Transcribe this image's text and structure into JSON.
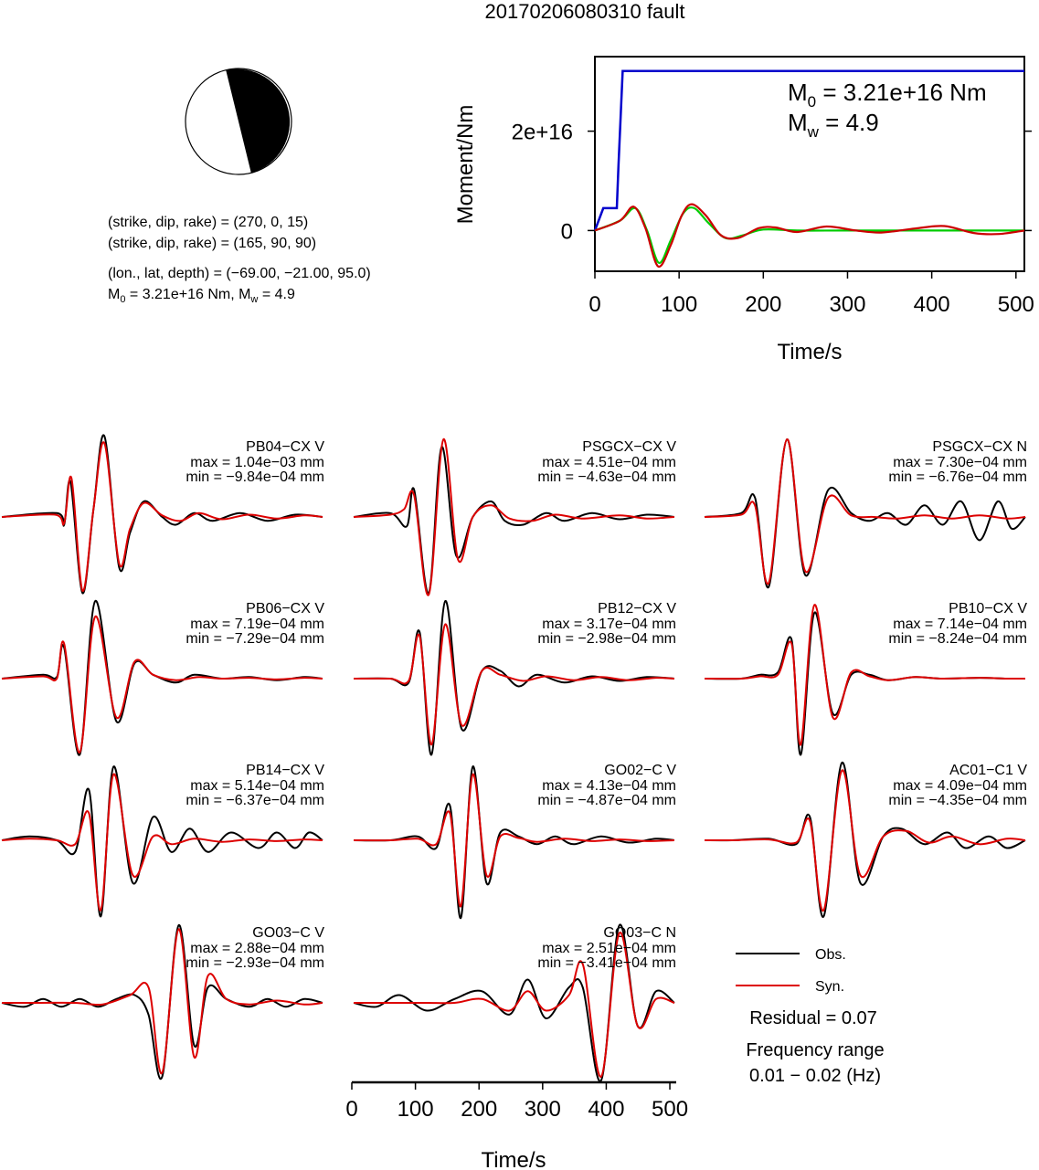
{
  "page": {
    "title": "20170206080310 fault"
  },
  "beachball": {
    "colors": {
      "fill": "#000000",
      "background": "#ffffff"
    }
  },
  "info": {
    "line1": "(strike, dip, rake) = (270, 0, 15)",
    "line2": "(strike, dip, rake) = (165, 90, 90)",
    "line3": "(lon., lat, depth) = (−69.00, −21.00, 95.0)",
    "line4_prefix": "M",
    "line4_sub0": "0",
    "line4_mid": " = 3.21e+16 Nm, M",
    "line4_sub1": "w",
    "line4_suffix": " = 4.9"
  },
  "chart_data": [
    {
      "id": "moment",
      "type": "line",
      "title": "",
      "xlabel": "Time/s",
      "ylabel": "Moment/Nm",
      "xlim": [
        0,
        510
      ],
      "ylim": [
        -8200000000000000.0,
        3.5e+16
      ],
      "xticks": [
        0,
        100,
        200,
        300,
        400,
        500
      ],
      "yticks": [
        {
          "value": 0,
          "label": "0"
        },
        {
          "value": 2e+16,
          "label": "2e+16"
        }
      ],
      "annotation": {
        "m0": "M",
        "m0_sub": "0",
        "m0_val": " = 3.21e+16 Nm",
        "mw": "M",
        "mw_sub": "w",
        "mw_val": " = 4.9"
      },
      "series": [
        {
          "color": "#0000cc",
          "x": [
            0,
            10,
            12,
            26,
            28,
            33,
            510
          ],
          "y": [
            0,
            4500000000000000.0,
            4500000000000000.0,
            4500000000000000.0,
            1.3e+16,
            3.21e+16,
            3.21e+16
          ]
        },
        {
          "color": "#00cc00",
          "x": [
            0,
            30,
            48,
            62,
            76,
            90,
            105,
            118,
            135,
            155,
            175,
            200,
            240,
            300,
            400,
            510
          ],
          "y": [
            0,
            2000000000000000.0,
            4500000000000000.0,
            0,
            -6500000000000000.0,
            -2000000000000000.0,
            3500000000000000.0,
            4500000000000000.0,
            1500000000000000.0,
            -1500000000000000.0,
            -1000000000000000.0,
            200000000000000.0,
            0,
            0,
            0,
            0
          ]
        },
        {
          "color": "#cc0000",
          "x": [
            0,
            30,
            46,
            60,
            75,
            90,
            103,
            115,
            132,
            150,
            170,
            195,
            215,
            240,
            275,
            310,
            340,
            380,
            415,
            450,
            480,
            510
          ],
          "y": [
            0,
            2000000000000000.0,
            4800000000000000.0,
            500000000000000.0,
            -7200000000000000.0,
            -3000000000000000.0,
            3000000000000000.0,
            5300000000000000.0,
            3000000000000000.0,
            -1000000000000000.0,
            -1500000000000000.0,
            500000000000000.0,
            600000000000000.0,
            -300000000000000.0,
            800000000000000.0,
            0,
            -400000000000000.0,
            400000000000000.0,
            900000000000000.0,
            -500000000000000.0,
            -700000000000000.0,
            0
          ]
        }
      ]
    },
    {
      "id": "waveforms",
      "type": "line",
      "legend": {
        "obs": "Obs.",
        "syn": "Syn.",
        "obs_color": "#000000",
        "syn_color": "#dd0000"
      },
      "residual": "Residual = 0.07",
      "freq_label": "Frequency range",
      "freq_value": "0.01 − 0.02 (Hz)",
      "xlabel": "Time/s",
      "xlim": [
        0,
        510
      ],
      "xticks": [
        0,
        100,
        200,
        300,
        400,
        500
      ],
      "stations": [
        {
          "name": "PB04−CX V",
          "max": "max = 1.04e−03 mm",
          "min": "min = −9.84e−04 mm",
          "ymax": 0.00104,
          "ymin": -0.000984,
          "obs_t": [
            0,
            60,
            68,
            75,
            88,
            100,
            112,
            128,
            140,
            155,
            175,
            190,
            210,
            230,
            260,
            290,
            320,
            350
          ],
          "obs_v": [
            0,
            0.05,
            -0.1,
            0.45,
            -0.98,
            0.1,
            1.04,
            -0.65,
            -0.2,
            0.2,
            0,
            -0.1,
            0.05,
            -0.05,
            0.05,
            -0.05,
            0.03,
            0
          ],
          "syn_t": [
            0,
            58,
            68,
            76,
            88,
            100,
            112,
            128,
            140,
            155,
            175,
            195,
            215,
            240,
            270,
            300,
            330,
            350
          ],
          "syn_v": [
            0,
            0.03,
            -0.08,
            0.5,
            -0.95,
            0.1,
            0.95,
            -0.6,
            -0.15,
            0.18,
            0.02,
            -0.05,
            0.05,
            -0.03,
            0.03,
            -0.02,
            0.02,
            0
          ]
        },
        {
          "name": "PSGCX−CX V",
          "max": "max = 4.51e−04 mm",
          "min": "min = −4.63e−04 mm",
          "ymax": 0.000451,
          "ymin": -0.000463,
          "obs_t": [
            0,
            40,
            58,
            66,
            82,
            96,
            112,
            130,
            150,
            165,
            185,
            210,
            230,
            260,
            290,
            320,
            350
          ],
          "obs_v": [
            0,
            0.05,
            -0.12,
            0.35,
            -0.98,
            0.9,
            -0.5,
            0.0,
            0.2,
            -0.05,
            -0.1,
            0.05,
            -0.05,
            0.05,
            -0.03,
            0.03,
            0
          ],
          "syn_t": [
            0,
            40,
            55,
            66,
            82,
            98,
            114,
            130,
            150,
            170,
            195,
            220,
            250,
            290,
            320,
            350
          ],
          "syn_v": [
            0,
            0.03,
            0.1,
            0.28,
            -1.0,
            1.0,
            -0.55,
            0,
            0.15,
            -0.02,
            -0.05,
            0.03,
            -0.02,
            0.02,
            -0.02,
            0
          ]
        },
        {
          "name": "PSGCX−CX N",
          "max": "max = 7.30e−04 mm",
          "min": "min = −6.76e−04 mm",
          "ymax": 0.00073,
          "ymin": -0.000676,
          "obs_t": [
            0,
            40,
            55,
            70,
            90,
            110,
            135,
            160,
            180,
            200,
            220,
            240,
            260,
            280,
            300,
            320,
            335,
            350
          ],
          "obs_v": [
            0,
            0.05,
            0.25,
            -0.9,
            1.0,
            -0.75,
            0.35,
            0.05,
            -0.05,
            0.05,
            -0.1,
            0.15,
            -0.1,
            0.2,
            -0.3,
            0.2,
            -0.15,
            0
          ],
          "syn_t": [
            0,
            40,
            55,
            70,
            90,
            110,
            135,
            160,
            185,
            210,
            240,
            270,
            300,
            330,
            350
          ],
          "syn_v": [
            0,
            0.03,
            0.15,
            -0.85,
            1.0,
            -0.7,
            0.25,
            0.02,
            0,
            -0.02,
            0.02,
            -0.02,
            0.02,
            -0.02,
            0
          ]
        },
        {
          "name": "PB06−CX V",
          "max": "max = 7.19e−04 mm",
          "min": "min = −7.29e−04 mm",
          "ymax": 0.000719,
          "ymin": -0.000729,
          "obs_t": [
            0,
            45,
            60,
            68,
            85,
            102,
            125,
            145,
            165,
            190,
            210,
            240,
            270,
            300,
            330,
            350
          ],
          "obs_v": [
            0,
            0.05,
            0.02,
            0.4,
            -0.98,
            1.0,
            -0.55,
            0.2,
            0.05,
            -0.05,
            0.05,
            0,
            0.02,
            -0.02,
            0.02,
            0
          ],
          "syn_t": [
            0,
            45,
            60,
            68,
            85,
            102,
            125,
            145,
            165,
            190,
            215,
            240,
            270,
            300,
            330,
            350
          ],
          "syn_v": [
            0,
            0.03,
            0,
            0.45,
            -0.95,
            0.8,
            -0.5,
            0.22,
            0.05,
            -0.02,
            0.02,
            0,
            0.01,
            -0.01,
            0.01,
            0
          ]
        },
        {
          "name": "PB12−CX V",
          "max": "max = 3.17e−04 mm",
          "min": "min = −2.98e−04 mm",
          "ymax": 0.000317,
          "ymin": -0.000298,
          "obs_t": [
            0,
            40,
            60,
            72,
            85,
            100,
            118,
            140,
            160,
            180,
            200,
            230,
            260,
            290,
            320,
            350
          ],
          "obs_v": [
            0,
            0.0,
            -0.05,
            0.6,
            -0.98,
            1.0,
            -0.65,
            0.1,
            0.1,
            -0.1,
            0.05,
            -0.05,
            0.03,
            -0.03,
            0.02,
            0
          ],
          "syn_t": [
            0,
            40,
            60,
            72,
            85,
            100,
            118,
            140,
            160,
            185,
            210,
            240,
            270,
            300,
            330,
            350
          ],
          "syn_v": [
            0,
            0,
            -0.03,
            0.55,
            -0.85,
            0.7,
            -0.6,
            0.1,
            0.05,
            -0.03,
            0.03,
            -0.02,
            0.02,
            -0.02,
            0.01,
            0
          ]
        },
        {
          "name": "PB10−CX V",
          "max": "max = 7.14e−04 mm",
          "min": "min = −8.24e−04 mm",
          "ymax": 0.000714,
          "ymin": -0.000824,
          "obs_t": [
            0,
            40,
            60,
            80,
            95,
            105,
            120,
            140,
            160,
            180,
            200,
            230,
            260,
            300,
            330,
            350
          ],
          "obs_v": [
            0,
            0.0,
            0.05,
            0.08,
            0.5,
            -0.98,
            0.85,
            -0.45,
            0.05,
            0.05,
            -0.02,
            0.02,
            0,
            0.01,
            0,
            0
          ],
          "syn_t": [
            0,
            40,
            60,
            80,
            95,
            105,
            120,
            140,
            160,
            180,
            200,
            230,
            260,
            300,
            330,
            350
          ],
          "syn_v": [
            0,
            0,
            0.03,
            0.05,
            0.45,
            -0.85,
            0.95,
            -0.5,
            0.08,
            0.03,
            -0.02,
            0.02,
            0,
            0.01,
            0,
            0
          ]
        },
        {
          "name": "PB14−CX V",
          "max": "max = 5.14e−04 mm",
          "min": "min = −6.37e−04 mm",
          "ymax": 0.000514,
          "ymin": -0.000637,
          "obs_t": [
            0,
            30,
            60,
            80,
            95,
            108,
            122,
            143,
            165,
            185,
            205,
            225,
            250,
            280,
            300,
            320,
            335,
            350
          ],
          "obs_v": [
            0,
            0.05,
            0.0,
            -0.15,
            0.65,
            -0.98,
            0.95,
            -0.55,
            0.3,
            -0.15,
            0.15,
            -0.15,
            0.1,
            -0.1,
            0.1,
            -0.1,
            0.1,
            0
          ],
          "syn_t": [
            0,
            30,
            60,
            80,
            95,
            108,
            122,
            143,
            165,
            185,
            210,
            240,
            270,
            300,
            330,
            350
          ],
          "syn_v": [
            0,
            0.02,
            0.0,
            -0.05,
            0.35,
            -0.9,
            0.85,
            -0.45,
            0.05,
            -0.05,
            0.02,
            -0.02,
            0.01,
            -0.01,
            0.01,
            0
          ]
        },
        {
          "name": "GO02−C V",
          "max": "max = 4.13e−04 mm",
          "min": "min = −4.87e−04 mm",
          "ymax": 0.000413,
          "ymin": -0.000487,
          "obs_t": [
            0,
            40,
            70,
            90,
            105,
            117,
            130,
            145,
            160,
            180,
            200,
            220,
            240,
            270,
            300,
            330,
            350
          ],
          "obs_v": [
            0,
            0.0,
            0.05,
            -0.1,
            0.45,
            -1.0,
            0.95,
            -0.55,
            0.1,
            0.05,
            -0.05,
            0.05,
            -0.05,
            0.05,
            -0.03,
            0.02,
            0
          ],
          "syn_t": [
            0,
            40,
            70,
            90,
            105,
            117,
            130,
            145,
            160,
            180,
            200,
            230,
            260,
            290,
            320,
            350
          ],
          "syn_v": [
            0,
            0,
            0.02,
            -0.05,
            0.35,
            -0.85,
            0.85,
            -0.45,
            0.05,
            0.03,
            -0.02,
            0.02,
            -0.01,
            0.01,
            -0.01,
            0
          ]
        },
        {
          "name": "AC01−C1 V",
          "max": "max = 4.09e−04 mm",
          "min": "min = −4.35e−04 mm",
          "ymax": 0.000409,
          "ymin": -0.000435,
          "obs_t": [
            0,
            30,
            70,
            100,
            115,
            130,
            150,
            170,
            195,
            215,
            240,
            265,
            285,
            310,
            330,
            350
          ],
          "obs_v": [
            0,
            0.0,
            0.02,
            -0.05,
            0.3,
            -0.98,
            1.0,
            -0.55,
            0.05,
            0.15,
            -0.05,
            0.1,
            -0.1,
            0.05,
            -0.1,
            0
          ],
          "syn_t": [
            0,
            30,
            70,
            100,
            115,
            130,
            150,
            170,
            195,
            220,
            245,
            270,
            300,
            330,
            350
          ],
          "syn_v": [
            0,
            0,
            0.01,
            -0.03,
            0.25,
            -0.9,
            0.9,
            -0.45,
            0.05,
            0.12,
            -0.03,
            0.05,
            -0.05,
            0.02,
            0
          ]
        },
        {
          "name": "GO03−C V",
          "max": "max = 2.88e−04 mm",
          "min": "min = −2.93e−04 mm",
          "ymax": 0.000288,
          "ymin": -0.000293,
          "obs_t": [
            0,
            25,
            45,
            65,
            85,
            105,
            125,
            145,
            160,
            175,
            193,
            210,
            225,
            245,
            270,
            290,
            310,
            330,
            350
          ],
          "obs_v": [
            0,
            -0.05,
            0.05,
            -0.05,
            0.05,
            -0.05,
            0.05,
            0.1,
            -0.15,
            -0.95,
            1.0,
            -0.55,
            0.2,
            0.05,
            -0.05,
            0.05,
            -0.05,
            0.05,
            0
          ],
          "syn_t": [
            0,
            40,
            80,
            110,
            140,
            160,
            175,
            193,
            210,
            225,
            245,
            270,
            300,
            330,
            350
          ],
          "syn_v": [
            0,
            0.0,
            0,
            -0.02,
            0.1,
            0.2,
            -0.9,
            0.95,
            -0.7,
            0.35,
            0.05,
            -0.02,
            0.03,
            -0.02,
            0
          ]
        },
        {
          "name": "GO03−C N",
          "max": "max = 2.51e−04 mm",
          "min": "min = −3.41e−04 mm",
          "ymax": 0.000251,
          "ymin": -0.000341,
          "obs_t": [
            0,
            25,
            50,
            80,
            110,
            140,
            170,
            190,
            210,
            235,
            250,
            270,
            290,
            310,
            330,
            350
          ],
          "obs_v": [
            0,
            -0.05,
            0.1,
            -0.1,
            0.05,
            0.15,
            -0.15,
            0.3,
            -0.2,
            0.2,
            0.2,
            -1.0,
            1.0,
            -0.3,
            0.15,
            0
          ],
          "syn_t": [
            0,
            25,
            50,
            80,
            110,
            140,
            170,
            190,
            210,
            235,
            250,
            270,
            290,
            310,
            330,
            350
          ],
          "syn_v": [
            0,
            0,
            0,
            0,
            0,
            0.05,
            -0.1,
            0.15,
            -0.1,
            0.1,
            0.5,
            -0.95,
            0.9,
            -0.3,
            0.05,
            0
          ]
        }
      ]
    }
  ]
}
